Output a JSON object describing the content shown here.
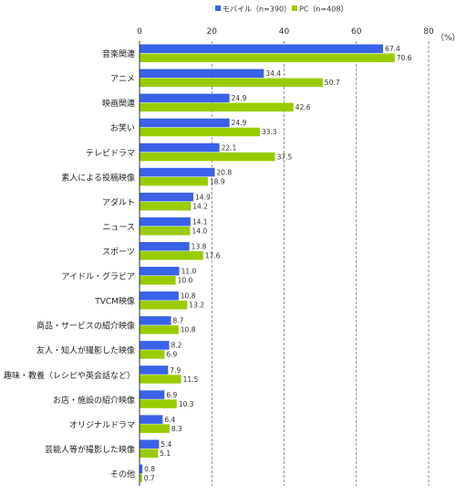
{
  "chart_data": {
    "type": "bar",
    "orientation": "horizontal",
    "categories": [
      "音楽関連",
      "アニメ",
      "映画関連",
      "お笑い",
      "テレビドラマ",
      "素人による投稿映像",
      "アダルト",
      "ニュース",
      "スポーツ",
      "アイドル・グラビア",
      "TVCM映像",
      "商品・サービスの紹介映像",
      "友人・知人が撮影した映像",
      "趣味・教養（レシピや英会話など）",
      "お店・施設の紹介映像",
      "オリジナルドラマ",
      "芸能人等が撮影した映像",
      "その他"
    ],
    "series": [
      {
        "name": "モバイル（n=390）",
        "color": "#3a62e8",
        "values": [
          67.4,
          34.4,
          24.9,
          24.9,
          22.1,
          20.8,
          14.9,
          14.1,
          13.8,
          11.0,
          10.8,
          8.7,
          8.2,
          7.9,
          6.9,
          6.4,
          5.4,
          0.8
        ]
      },
      {
        "name": "PC（n=408）",
        "color": "#99cc00",
        "values": [
          70.6,
          50.7,
          42.6,
          33.3,
          37.5,
          18.9,
          14.2,
          14.0,
          17.6,
          10.0,
          13.2,
          10.8,
          6.9,
          11.5,
          10.3,
          8.3,
          5.1,
          0.7
        ]
      }
    ],
    "value_labels": [
      [
        "67.4",
        "70.6"
      ],
      [
        "34.4",
        "50.7"
      ],
      [
        "24.9",
        "42.6"
      ],
      [
        "24.9",
        "33.3"
      ],
      [
        "22.1",
        "37.5"
      ],
      [
        "20.8",
        "18.9"
      ],
      [
        "14.9",
        "14.2"
      ],
      [
        "14.1",
        "14.0"
      ],
      [
        "13.8",
        "17.6"
      ],
      [
        "11.0",
        "10.0"
      ],
      [
        "10.8",
        "13.2"
      ],
      [
        "8.7",
        "10.8"
      ],
      [
        "8.2",
        "6.9"
      ],
      [
        "7.9",
        "11.5"
      ],
      [
        "6.9",
        "10.3"
      ],
      [
        "6.4",
        "8.3"
      ],
      [
        "5.4",
        "5.1"
      ],
      [
        "0.8",
        "0.7"
      ]
    ],
    "xlim": [
      0,
      80
    ],
    "xticks": [
      "0",
      "20",
      "40",
      "60",
      "80"
    ],
    "unit": "（%）",
    "grid": "dashed vertical",
    "legend_position": "top"
  }
}
